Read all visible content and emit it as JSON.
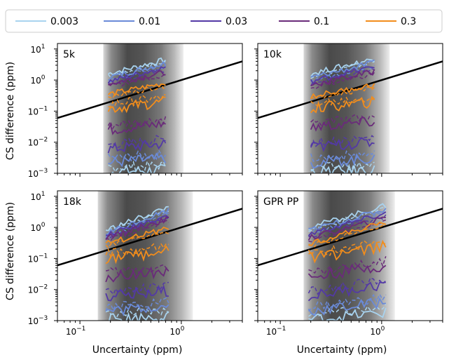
{
  "chart_data": {
    "type": "line",
    "description_units": "log-log contour plots",
    "legend": {
      "placement": "top",
      "entries": [
        {
          "label": "0.003",
          "color": "#a8d3ef"
        },
        {
          "label": "0.01",
          "color": "#6a8ad8"
        },
        {
          "label": "0.03",
          "color": "#5339a6"
        },
        {
          "label": "0.1",
          "color": "#6a2b7a"
        },
        {
          "label": "0.3",
          "color": "#f28d1c"
        }
      ]
    },
    "xlabel": "Uncertainty (ppm)",
    "ylabel": "CS difference (ppm)",
    "xlim": [
      0.06,
      4.0
    ],
    "ylim": [
      0.001,
      15
    ],
    "x_ticks": [
      {
        "value": 0.1,
        "base": "10",
        "exp": "−1"
      },
      {
        "value": 1,
        "base": "10",
        "exp": "0"
      }
    ],
    "y_ticks": [
      {
        "value": 0.001,
        "base": "10",
        "exp": "−3"
      },
      {
        "value": 0.01,
        "base": "10",
        "exp": "−2"
      },
      {
        "value": 0.1,
        "base": "10",
        "exp": "−1"
      },
      {
        "value": 1,
        "base": "10",
        "exp": "0"
      },
      {
        "value": 10,
        "base": "10",
        "exp": "1"
      }
    ],
    "reference_line": {
      "x": [
        0.06,
        4.0
      ],
      "y": [
        0.06,
        4.0
      ],
      "color": "#000000"
    },
    "panels": [
      {
        "title": "5k",
        "band": [
          0.17,
          1.05
        ],
        "x_range": [
          0.19,
          0.7
        ],
        "levels": [
          {
            "color": "#a8d3ef",
            "y_lo": [
              0.0011,
              0.0013
            ],
            "y_hi": [
              1.6,
              4.5
            ]
          },
          {
            "color": "#6a8ad8",
            "y_lo": [
              0.0022,
              0.003
            ],
            "y_hi": [
              1.2,
              3.5
            ]
          },
          {
            "color": "#5339a6",
            "y_lo": [
              0.006,
              0.009
            ],
            "y_hi": [
              0.9,
              2.6
            ]
          },
          {
            "color": "#6a2b7a",
            "y_lo": [
              0.025,
              0.04
            ],
            "y_hi": [
              0.75,
              1.8
            ]
          },
          {
            "color": "#f28d1c",
            "y_lo": [
              0.12,
              0.2
            ],
            "y_hi": [
              0.35,
              0.8
            ]
          }
        ]
      },
      {
        "title": "10k",
        "band": [
          0.17,
          1.2
        ],
        "x_range": [
          0.2,
          0.85
        ],
        "levels": [
          {
            "color": "#a8d3ef",
            "y_lo": [
              0.0011,
              0.0013
            ],
            "y_hi": [
              1.6,
              4.8
            ]
          },
          {
            "color": "#6a8ad8",
            "y_lo": [
              0.0022,
              0.003
            ],
            "y_hi": [
              1.2,
              3.6
            ]
          },
          {
            "color": "#5339a6",
            "y_lo": [
              0.007,
              0.01
            ],
            "y_hi": [
              0.9,
              2.7
            ]
          },
          {
            "color": "#6a2b7a",
            "y_lo": [
              0.03,
              0.045
            ],
            "y_hi": [
              0.7,
              1.9
            ]
          },
          {
            "color": "#f28d1c",
            "y_lo": [
              0.12,
              0.2
            ],
            "y_hi": [
              0.3,
              0.7
            ]
          }
        ]
      },
      {
        "title": "18k",
        "band": [
          0.15,
          1.3
        ],
        "x_range": [
          0.18,
          0.75
        ],
        "levels": [
          {
            "color": "#a8d3ef",
            "y_lo": [
              0.0011,
              0.0014
            ],
            "y_hi": [
              0.8,
              4.5
            ]
          },
          {
            "color": "#6a8ad8",
            "y_lo": [
              0.002,
              0.003
            ],
            "y_hi": [
              0.65,
              3.6
            ]
          },
          {
            "color": "#5339a6",
            "y_lo": [
              0.006,
              0.009
            ],
            "y_hi": [
              0.55,
              2.5
            ]
          },
          {
            "color": "#6a2b7a",
            "y_lo": [
              0.025,
              0.04
            ],
            "y_hi": [
              0.45,
              1.9
            ]
          },
          {
            "color": "#f28d1c",
            "y_lo": [
              0.1,
              0.17
            ],
            "y_hi": [
              0.3,
              0.9
            ]
          }
        ]
      },
      {
        "title": "GPR PP",
        "band": [
          0.17,
          1.35
        ],
        "x_range": [
          0.19,
          1.1
        ],
        "levels": [
          {
            "color": "#a8d3ef",
            "y_lo": [
              0.0011,
              0.0018
            ],
            "y_hi": [
              1.0,
              5.0
            ]
          },
          {
            "color": "#6a8ad8",
            "y_lo": [
              0.002,
              0.004
            ],
            "y_hi": [
              0.8,
              3.8
            ]
          },
          {
            "color": "#5339a6",
            "y_lo": [
              0.006,
              0.015
            ],
            "y_hi": [
              0.6,
              2.8
            ]
          },
          {
            "color": "#6a2b7a",
            "y_lo": [
              0.025,
              0.06
            ],
            "y_hi": [
              0.45,
              2.0
            ]
          },
          {
            "color": "#f28d1c",
            "y_lo": [
              0.1,
              0.25
            ],
            "y_hi": [
              0.3,
              1.5
            ]
          }
        ]
      }
    ]
  }
}
